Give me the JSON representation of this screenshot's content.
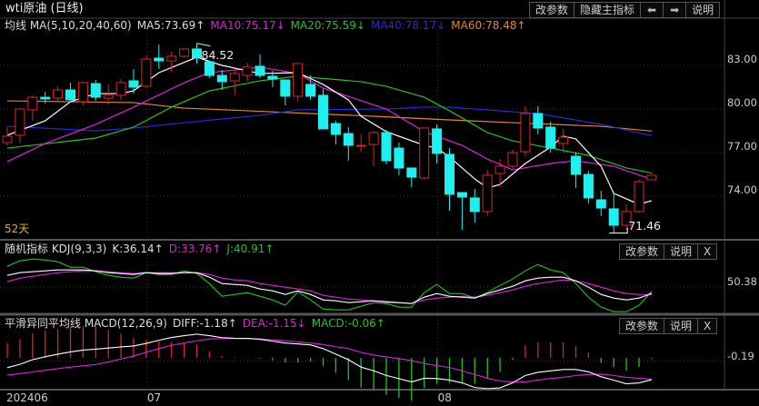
{
  "title": "wti原油 (日线)",
  "toolbar": {
    "params": "改参数",
    "hide_main": "隐藏主指标",
    "left": "⬅",
    "right": "➡",
    "help": "说明"
  },
  "main_legend": {
    "prefix": "均线 MA(5,10,20,40,60)",
    "ma5": "MA5:73.69↑",
    "ma10": "MA10:75.17↓",
    "ma20": "MA20:75.59↓",
    "ma40": "MA40:78.17↓",
    "ma60": "MA60:78.48↑"
  },
  "days_label": "52天",
  "kdj_panel": {
    "prefix": "随机指标 KDJ(9,3,3)",
    "k": "K:36.14↑",
    "d": "D:33.76↑",
    "j": "J:40.91↑",
    "params": "改参数",
    "help": "说明",
    "close": "X",
    "axis_label": "50.38"
  },
  "macd_panel": {
    "prefix": "平滑异同平均线 MACD(12,26,9)",
    "diff": "DIFF:-1.18↑",
    "dea": "DEA:-1.15↓",
    "macd": "MACD:-0.06↑",
    "params": "改参数",
    "help": "说明",
    "close": "X",
    "axis_label": "-0.19"
  },
  "colors": {
    "up": "#e02424",
    "down": "#1ef0f0",
    "ma5": "#ffffff",
    "ma10": "#e020e0",
    "ma20": "#22c422",
    "ma40": "#2a2ae0",
    "ma60": "#e8842c",
    "k": "#ffffff",
    "d": "#e020e0",
    "j": "#22c422",
    "days": "#e0b030"
  },
  "chart_data": [
    {
      "type": "candlestick",
      "title": "wti原油 (日线)",
      "ylim": [
        71,
        85
      ],
      "yticks": [
        "83.00",
        "80.00",
        "77.00",
        "74.00"
      ],
      "ytick_values": [
        83,
        80,
        77,
        74
      ],
      "x_labels": [
        {
          "index": 0,
          "label": "202406"
        },
        {
          "index": 11,
          "label": "07"
        },
        {
          "index": 34,
          "label": "08"
        }
      ],
      "high_label": {
        "index": 15,
        "value": "84.52"
      },
      "low_label": {
        "index": 48,
        "value": "71.46"
      },
      "ohlc": [
        [
          77.69,
          78.75,
          77.5,
          78.13
        ],
        [
          78.19,
          80.06,
          77.69,
          80.0
        ],
        [
          79.94,
          80.94,
          79.19,
          80.81
        ],
        [
          80.81,
          81.19,
          80.38,
          80.69
        ],
        [
          80.75,
          81.56,
          80.5,
          81.31
        ],
        [
          81.31,
          81.81,
          80.44,
          80.63
        ],
        [
          80.5,
          81.88,
          80.25,
          81.81
        ],
        [
          81.75,
          82.0,
          80.56,
          80.81
        ],
        [
          80.75,
          81.69,
          80.31,
          80.94
        ],
        [
          80.94,
          82.06,
          80.63,
          81.81
        ],
        [
          81.94,
          82.75,
          81.06,
          81.5
        ],
        [
          81.56,
          83.69,
          81.44,
          83.44
        ],
        [
          83.5,
          84.44,
          82.75,
          83.31
        ],
        [
          83.31,
          83.94,
          82.56,
          83.63
        ],
        [
          83.63,
          84.19,
          83.56,
          84.13
        ],
        [
          84.13,
          84.52,
          83.13,
          83.5
        ],
        [
          83.25,
          83.31,
          82.13,
          82.31
        ],
        [
          82.31,
          82.69,
          81.31,
          81.88
        ],
        [
          81.94,
          82.69,
          80.94,
          82.44
        ],
        [
          82.31,
          83.19,
          81.88,
          82.88
        ],
        [
          82.94,
          83.75,
          82.13,
          82.31
        ],
        [
          82.25,
          82.63,
          81.5,
          82.06
        ],
        [
          82.0,
          82.0,
          80.25,
          80.88
        ],
        [
          80.88,
          83.13,
          80.5,
          83.13
        ],
        [
          81.69,
          82.31,
          80.63,
          80.88
        ],
        [
          80.94,
          81.38,
          78.63,
          78.63
        ],
        [
          79.0,
          79.19,
          77.56,
          78.25
        ],
        [
          78.31,
          78.75,
          76.44,
          77.5
        ],
        [
          77.5,
          78.25,
          77.06,
          77.5
        ],
        [
          77.56,
          78.5,
          76.06,
          78.38
        ],
        [
          78.38,
          78.56,
          76.19,
          76.44
        ],
        [
          77.31,
          77.69,
          75.44,
          75.94
        ],
        [
          75.94,
          75.94,
          74.63,
          75.31
        ],
        [
          75.25,
          78.69,
          75.19,
          78.69
        ],
        [
          78.63,
          78.94,
          76.25,
          76.94
        ],
        [
          76.88,
          77.31,
          73.0,
          74.13
        ],
        [
          74.25,
          74.25,
          71.69,
          73.94
        ],
        [
          73.88,
          74.5,
          72.19,
          72.94
        ],
        [
          72.94,
          75.81,
          72.63,
          75.44
        ],
        [
          75.56,
          76.56,
          74.63,
          76.06
        ],
        [
          76.06,
          77.19,
          75.88,
          77.0
        ],
        [
          77.06,
          80.19,
          76.75,
          79.69
        ],
        [
          79.69,
          80.19,
          78.25,
          78.69
        ],
        [
          78.75,
          79.13,
          77.0,
          77.31
        ],
        [
          77.63,
          78.63,
          77.0,
          78.06
        ],
        [
          76.75,
          77.0,
          74.56,
          75.5
        ],
        [
          75.5,
          75.75,
          73.5,
          73.88
        ],
        [
          73.75,
          74.38,
          72.63,
          73.19
        ],
        [
          73.13,
          74.19,
          71.46,
          72.0
        ],
        [
          72.0,
          73.44,
          71.69,
          72.94
        ],
        [
          72.94,
          75.13,
          72.88,
          75.0
        ],
        [
          75.13,
          75.44,
          75.13,
          75.44
        ]
      ],
      "ma": {
        "ma5": [
          [
            0,
            78.19
          ],
          [
            3,
            79.19
          ],
          [
            5,
            80.5
          ],
          [
            7,
            81.06
          ],
          [
            9,
            81.06
          ],
          [
            10,
            81.25
          ],
          [
            12,
            82.5
          ],
          [
            15,
            83.56
          ],
          [
            17,
            83.0
          ],
          [
            20,
            82.44
          ],
          [
            23,
            82.5
          ],
          [
            25,
            81.69
          ],
          [
            27,
            80.63
          ],
          [
            28,
            79.5
          ],
          [
            30,
            78.44
          ],
          [
            33,
            77.5
          ],
          [
            34,
            77.31
          ],
          [
            35,
            76.69
          ],
          [
            37,
            75.19
          ],
          [
            38,
            74.56
          ],
          [
            39,
            74.81
          ],
          [
            41,
            76.25
          ],
          [
            43,
            77.38
          ],
          [
            44,
            78.13
          ],
          [
            45,
            77.94
          ],
          [
            47,
            76.06
          ],
          [
            48,
            74.19
          ],
          [
            50,
            73.44
          ],
          [
            51,
            73.69
          ]
        ],
        "ma10": [
          [
            0,
            76.38
          ],
          [
            3,
            77.63
          ],
          [
            7,
            78.94
          ],
          [
            10,
            80.13
          ],
          [
            14,
            81.81
          ],
          [
            16,
            82.5
          ],
          [
            20,
            82.88
          ],
          [
            23,
            82.44
          ],
          [
            25,
            81.44
          ],
          [
            30,
            80.0
          ],
          [
            33,
            78.44
          ],
          [
            36,
            77.5
          ],
          [
            38,
            76.56
          ],
          [
            40,
            75.81
          ],
          [
            43,
            76.25
          ],
          [
            45,
            76.44
          ],
          [
            48,
            76.06
          ],
          [
            51,
            75.17
          ]
        ],
        "ma20": [
          [
            0,
            77.31
          ],
          [
            7,
            78.0
          ],
          [
            10,
            78.75
          ],
          [
            13,
            80.13
          ],
          [
            16,
            81.25
          ],
          [
            20,
            81.94
          ],
          [
            23,
            82.25
          ],
          [
            28,
            81.88
          ],
          [
            30,
            81.56
          ],
          [
            33,
            80.81
          ],
          [
            35,
            79.88
          ],
          [
            38,
            78.38
          ],
          [
            40,
            77.81
          ],
          [
            43,
            77.31
          ],
          [
            46,
            76.81
          ],
          [
            49,
            75.94
          ],
          [
            51,
            75.59
          ]
        ],
        "ma40": [
          [
            0,
            78.81
          ],
          [
            7,
            78.5
          ],
          [
            10,
            78.69
          ],
          [
            14,
            79.06
          ],
          [
            20,
            79.56
          ],
          [
            23,
            79.94
          ],
          [
            30,
            80.0
          ],
          [
            33,
            80.13
          ],
          [
            35,
            80.13
          ],
          [
            40,
            79.81
          ],
          [
            42,
            79.69
          ],
          [
            47,
            78.94
          ],
          [
            51,
            78.17
          ]
        ],
        "ma60": [
          [
            0,
            80.56
          ],
          [
            10,
            80.44
          ],
          [
            14,
            80.06
          ],
          [
            19,
            79.88
          ],
          [
            29,
            79.5
          ],
          [
            35,
            79.25
          ],
          [
            40,
            79.06
          ],
          [
            47,
            78.81
          ],
          [
            51,
            78.48
          ]
        ]
      }
    },
    {
      "type": "line",
      "title": "KDJ(9,3,3)",
      "reference": 50.38,
      "series": [
        {
          "name": "K",
          "values": [
            76,
            82,
            84,
            86,
            88,
            88,
            88,
            86,
            82,
            80,
            78,
            82,
            80,
            80,
            82,
            82,
            72,
            58,
            56,
            54,
            46,
            42,
            34,
            42,
            34,
            22,
            20,
            16,
            18,
            20,
            18,
            16,
            14,
            28,
            36,
            30,
            28,
            26,
            36,
            44,
            52,
            64,
            70,
            72,
            72,
            64,
            50,
            34,
            26,
            22,
            26,
            36.14
          ]
        },
        {
          "name": "D",
          "values": [
            62,
            70,
            74,
            78,
            82,
            84,
            86,
            86,
            84,
            82,
            80,
            82,
            82,
            82,
            82,
            82,
            78,
            70,
            66,
            64,
            58,
            54,
            50,
            46,
            42,
            32,
            28,
            24,
            22,
            20,
            16,
            16,
            14,
            22,
            26,
            28,
            30,
            28,
            32,
            38,
            44,
            52,
            58,
            62,
            66,
            64,
            58,
            50,
            42,
            36,
            34,
            33.76
          ]
        },
        {
          "name": "J",
          "values": [
            96,
            108,
            112,
            110,
            106,
            94,
            94,
            84,
            76,
            72,
            70,
            82,
            78,
            78,
            86,
            80,
            58,
            30,
            34,
            38,
            30,
            22,
            10,
            40,
            22,
            2,
            0,
            0,
            8,
            16,
            14,
            6,
            6,
            38,
            56,
            36,
            36,
            26,
            38,
            54,
            68,
            86,
            100,
            88,
            82,
            58,
            28,
            6,
            -4,
            -4,
            10,
            40.91
          ]
        }
      ]
    },
    {
      "type": "bar+line",
      "title": "MACD(12,26,9)",
      "reference": -0.19,
      "series": [
        {
          "name": "DIFF",
          "values": [
            -0.53,
            -0.35,
            -0.1,
            0.06,
            0.2,
            0.32,
            0.42,
            0.47,
            0.53,
            0.59,
            0.64,
            0.78,
            0.95,
            1.1,
            1.2,
            1.28,
            1.2,
            1.09,
            1.06,
            1.05,
            1.0,
            0.9,
            0.8,
            0.75,
            0.7,
            0.5,
            0.2,
            -0.1,
            -0.5,
            -0.7,
            -0.95,
            -1.12,
            -1.3,
            -1.1,
            -1.12,
            -1.2,
            -1.35,
            -1.6,
            -1.66,
            -1.62,
            -1.35,
            -0.95,
            -0.78,
            -0.7,
            -0.63,
            -0.63,
            -0.75,
            -1.02,
            -1.2,
            -1.4,
            -1.35,
            -1.18
          ]
        },
        {
          "name": "DEA",
          "values": [
            -0.93,
            -0.85,
            -0.76,
            -0.67,
            -0.58,
            -0.5,
            -0.43,
            -0.36,
            -0.22,
            -0.06,
            0.1,
            0.3,
            0.5,
            0.68,
            0.8,
            0.92,
            1.02,
            1.04,
            1.04,
            1.04,
            1.02,
            0.97,
            0.92,
            0.87,
            0.8,
            0.72,
            0.6,
            0.5,
            0.3,
            0.15,
            0.05,
            -0.04,
            -0.15,
            -0.3,
            -0.42,
            -0.52,
            -0.7,
            -0.9,
            -1.1,
            -1.25,
            -1.3,
            -1.3,
            -1.2,
            -1.12,
            -1.05,
            -0.95,
            -0.9,
            -0.88,
            -0.95,
            -1.05,
            -1.1,
            -1.15
          ]
        }
      ]
    }
  ]
}
